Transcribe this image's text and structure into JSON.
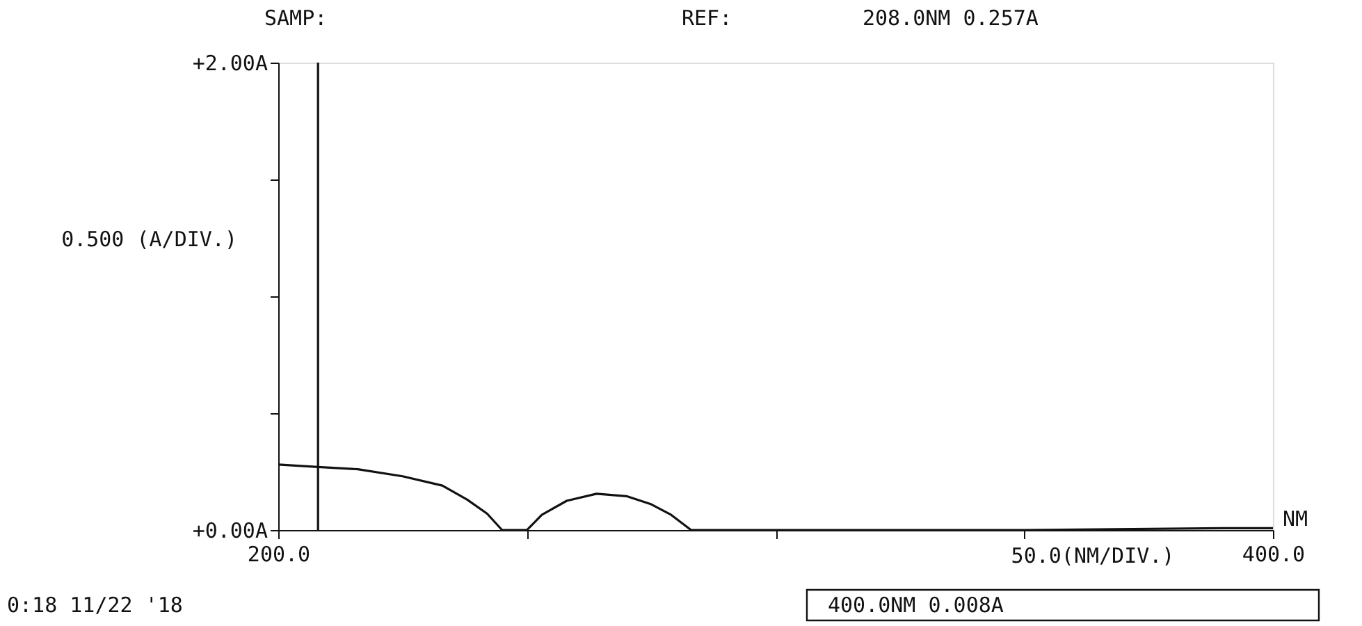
{
  "chart_data": {
    "type": "line",
    "xlabel": "50.0(NM/DIV.)",
    "ylabel": "0.500 (A/DIV.)",
    "x": [
      200,
      208,
      216,
      225,
      233,
      238,
      242,
      245,
      250,
      253,
      258,
      264,
      270,
      275,
      279,
      283,
      300,
      350,
      390,
      400
    ],
    "series": [
      {
        "color": "#111111",
        "values": [
          0.28,
          0.27,
          0.26,
          0.23,
          0.19,
          0.13,
          0.07,
          0,
          0,
          0.065,
          0.125,
          0.155,
          0.145,
          0.11,
          0.065,
          0,
          0,
          0,
          0.008,
          0.008
        ]
      }
    ],
    "xlim": [
      200,
      400
    ],
    "ylim": [
      0,
      2
    ],
    "xticks": [
      {
        "value": 200,
        "label": "200.0"
      },
      {
        "value": 250,
        "label": null
      },
      {
        "value": 300,
        "label": null
      },
      {
        "value": 350,
        "label": null
      },
      {
        "value": 400,
        "label": "400.0"
      }
    ],
    "yticks": [
      {
        "value": 0,
        "label": "+0.00A"
      },
      {
        "value": 0.5,
        "label": null
      },
      {
        "value": 1,
        "label": null
      },
      {
        "value": 1.5,
        "label": null
      },
      {
        "value": 2,
        "label": "+2.00A"
      }
    ],
    "ref_lines": [
      {
        "axis": "x",
        "value": 208,
        "label": null
      }
    ],
    "annotations": [
      "SAMP:",
      "REF:",
      "208.0NM   0.257A",
      "NM",
      "0:18 11/22 '18",
      "400.0NM   0.008A"
    ],
    "grid": false,
    "marker": "none",
    "line_style": "solid"
  }
}
